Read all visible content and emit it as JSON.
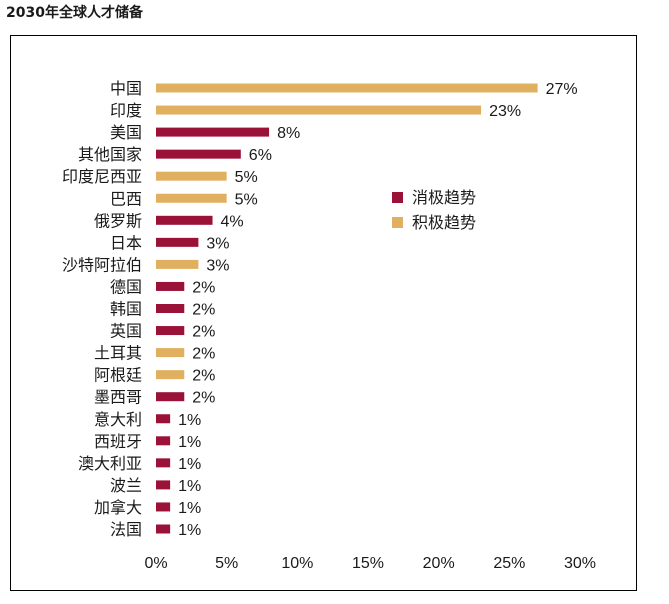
{
  "page": {
    "title": "2030年全球人才储备"
  },
  "colors": {
    "negative": "#9b1238",
    "positive": "#e0b060"
  },
  "chart_data": {
    "type": "bar",
    "orientation": "horizontal",
    "title": "2030年全球人才储备",
    "xlim": [
      0,
      30
    ],
    "xticks": [
      0,
      5,
      10,
      15,
      20,
      25,
      30
    ],
    "xtick_labels": [
      "0%",
      "5%",
      "10%",
      "15%",
      "20%",
      "25%",
      "30%"
    ],
    "legend_position": "right",
    "legend": [
      {
        "key": "negative",
        "label": "消极趋势"
      },
      {
        "key": "positive",
        "label": "积极趋势"
      }
    ],
    "categories": [
      "中国",
      "印度",
      "美国",
      "其他国家",
      "印度尼西亚",
      "巴西",
      "俄罗斯",
      "日本",
      "沙特阿拉伯",
      "德国",
      "韩国",
      "英国",
      "土耳其",
      "阿根廷",
      "墨西哥",
      "意大利",
      "西班牙",
      "澳大利亚",
      "波兰",
      "加拿大",
      "法国"
    ],
    "values": [
      27,
      23,
      8,
      6,
      5,
      5,
      4,
      3,
      3,
      2,
      2,
      2,
      2,
      2,
      2,
      1,
      1,
      1,
      1,
      1,
      1
    ],
    "value_labels": [
      "27%",
      "23%",
      "8%",
      "6%",
      "5%",
      "5%",
      "4%",
      "3%",
      "3%",
      "2%",
      "2%",
      "2%",
      "2%",
      "2%",
      "2%",
      "1%",
      "1%",
      "1%",
      "1%",
      "1%",
      "1%"
    ],
    "trend": [
      "positive",
      "positive",
      "negative",
      "negative",
      "positive",
      "positive",
      "negative",
      "negative",
      "positive",
      "negative",
      "negative",
      "negative",
      "positive",
      "positive",
      "negative",
      "negative",
      "negative",
      "negative",
      "negative",
      "negative",
      "negative"
    ]
  }
}
